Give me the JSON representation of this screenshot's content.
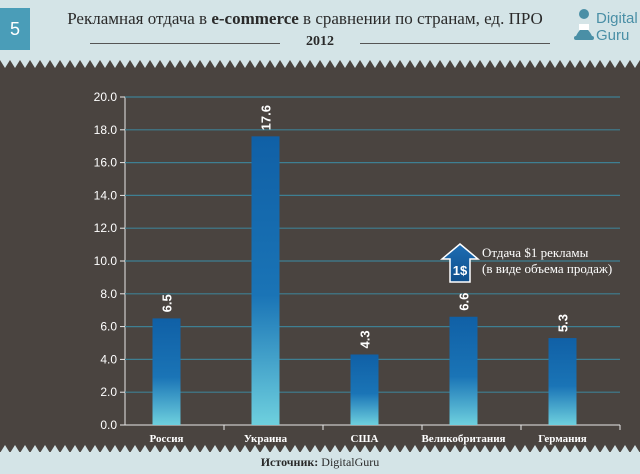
{
  "header": {
    "slide_number": "5",
    "title_part1": "Рекламная отдача в ",
    "title_bold": "e-commerce",
    "title_part2": " в сравнении по странам, ед. ПРО",
    "year": "2012"
  },
  "logo": {
    "line1": "Digital",
    "line2": "Guru",
    "icon": "guru-figure-icon"
  },
  "legend": {
    "icon_text": "1$",
    "icon": "up-arrow-icon",
    "line1": "Отдача $1 рекламы",
    "line2": "(в виде объема продаж)"
  },
  "footer": {
    "source_label": "Источник:",
    "source_value": " DigitalGuru"
  },
  "colors": {
    "bar_top": "#1060a6",
    "bar_bottom": "#6ed0de",
    "background": "#4a4440",
    "header": "#d4e4e7",
    "accent": "#4a9db8"
  },
  "chart_data": {
    "type": "bar",
    "categories": [
      "Россия",
      "Украина",
      "США",
      "Великобритания",
      "Германия"
    ],
    "values": [
      6.5,
      17.6,
      4.3,
      6.6,
      5.3
    ],
    "data_labels": [
      "6.5",
      "17.6",
      "4.3",
      "6.6",
      "5.3"
    ],
    "ylim": [
      0,
      20
    ],
    "yticks": [
      "0.0",
      "2.0",
      "4.0",
      "6.0",
      "8.0",
      "10.0",
      "12.0",
      "14.0",
      "16.0",
      "18.0",
      "20.0"
    ],
    "grid": true,
    "title": "",
    "xlabel": "",
    "ylabel": ""
  }
}
